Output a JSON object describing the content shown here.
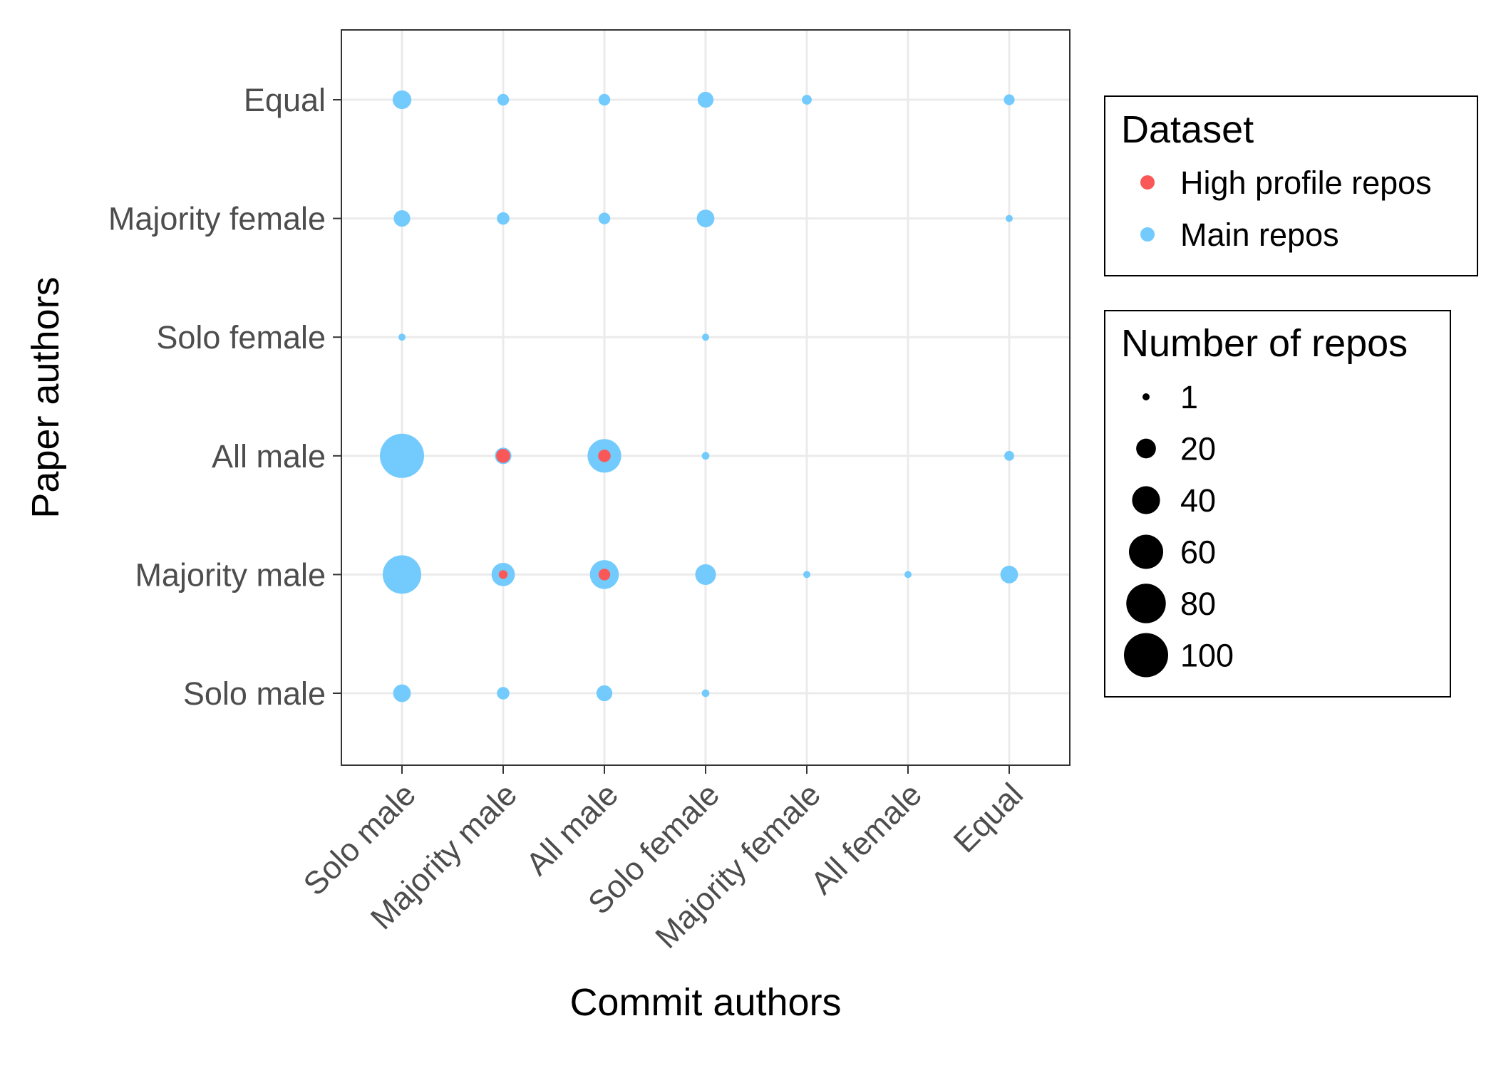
{
  "chart_data": {
    "type": "scatter",
    "xlabel": "Commit authors",
    "ylabel": "Paper authors",
    "x_categories": [
      "Solo male",
      "Majority male",
      "All male",
      "Solo female",
      "Majority female",
      "All female",
      "Equal"
    ],
    "y_categories": [
      "Solo male",
      "Majority male",
      "All male",
      "Solo female",
      "Majority female",
      "Equal"
    ],
    "grid": true,
    "legend_placement": "right",
    "size_legend": {
      "title": "Number of repos",
      "breaks": [
        1,
        20,
        40,
        60,
        80,
        100
      ],
      "labels": [
        "1",
        "20",
        "40",
        "60",
        "80",
        "100"
      ]
    },
    "series": [
      {
        "name": "Main repos",
        "color": "#73cbfd",
        "points": [
          {
            "x": "Solo male",
            "y": "Equal",
            "count": 18
          },
          {
            "x": "Majority male",
            "y": "Equal",
            "count": 7
          },
          {
            "x": "All male",
            "y": "Equal",
            "count": 7
          },
          {
            "x": "Solo female",
            "y": "Equal",
            "count": 13
          },
          {
            "x": "Majority female",
            "y": "Equal",
            "count": 5
          },
          {
            "x": "Equal",
            "y": "Equal",
            "count": 6
          },
          {
            "x": "Solo male",
            "y": "Majority female",
            "count": 14
          },
          {
            "x": "Majority male",
            "y": "Majority female",
            "count": 8
          },
          {
            "x": "All male",
            "y": "Majority female",
            "count": 7
          },
          {
            "x": "Solo female",
            "y": "Majority female",
            "count": 16
          },
          {
            "x": "Equal",
            "y": "Majority female",
            "count": 2
          },
          {
            "x": "Solo male",
            "y": "Solo female",
            "count": 2
          },
          {
            "x": "Solo female",
            "y": "Solo female",
            "count": 2
          },
          {
            "x": "Solo male",
            "y": "All male",
            "count": 100
          },
          {
            "x": "Majority male",
            "y": "All male",
            "count": 14
          },
          {
            "x": "All male",
            "y": "All male",
            "count": 58
          },
          {
            "x": "Solo female",
            "y": "All male",
            "count": 3
          },
          {
            "x": "Equal",
            "y": "All male",
            "count": 5
          },
          {
            "x": "Solo male",
            "y": "Majority male",
            "count": 76
          },
          {
            "x": "Majority male",
            "y": "Majority male",
            "count": 28
          },
          {
            "x": "All male",
            "y": "Majority male",
            "count": 43
          },
          {
            "x": "Solo female",
            "y": "Majority male",
            "count": 22
          },
          {
            "x": "Majority female",
            "y": "Majority male",
            "count": 2
          },
          {
            "x": "All female",
            "y": "Majority male",
            "count": 2
          },
          {
            "x": "Equal",
            "y": "Majority male",
            "count": 16
          },
          {
            "x": "Solo male",
            "y": "Solo male",
            "count": 16
          },
          {
            "x": "Majority male",
            "y": "Solo male",
            "count": 8
          },
          {
            "x": "All male",
            "y": "Solo male",
            "count": 13
          },
          {
            "x": "Solo female",
            "y": "Solo male",
            "count": 3
          }
        ]
      },
      {
        "name": "High profile repos",
        "color": "#fa5858",
        "points": [
          {
            "x": "Majority male",
            "y": "All male",
            "count": 10
          },
          {
            "x": "All male",
            "y": "All male",
            "count": 8
          },
          {
            "x": "Majority male",
            "y": "Majority male",
            "count": 4
          },
          {
            "x": "All male",
            "y": "Majority male",
            "count": 7
          }
        ]
      }
    ],
    "color_legend": {
      "title": "Dataset",
      "entries": [
        {
          "label": "High profile repos",
          "color": "#fa5858"
        },
        {
          "label": "Main repos",
          "color": "#73cbfd"
        }
      ]
    }
  }
}
